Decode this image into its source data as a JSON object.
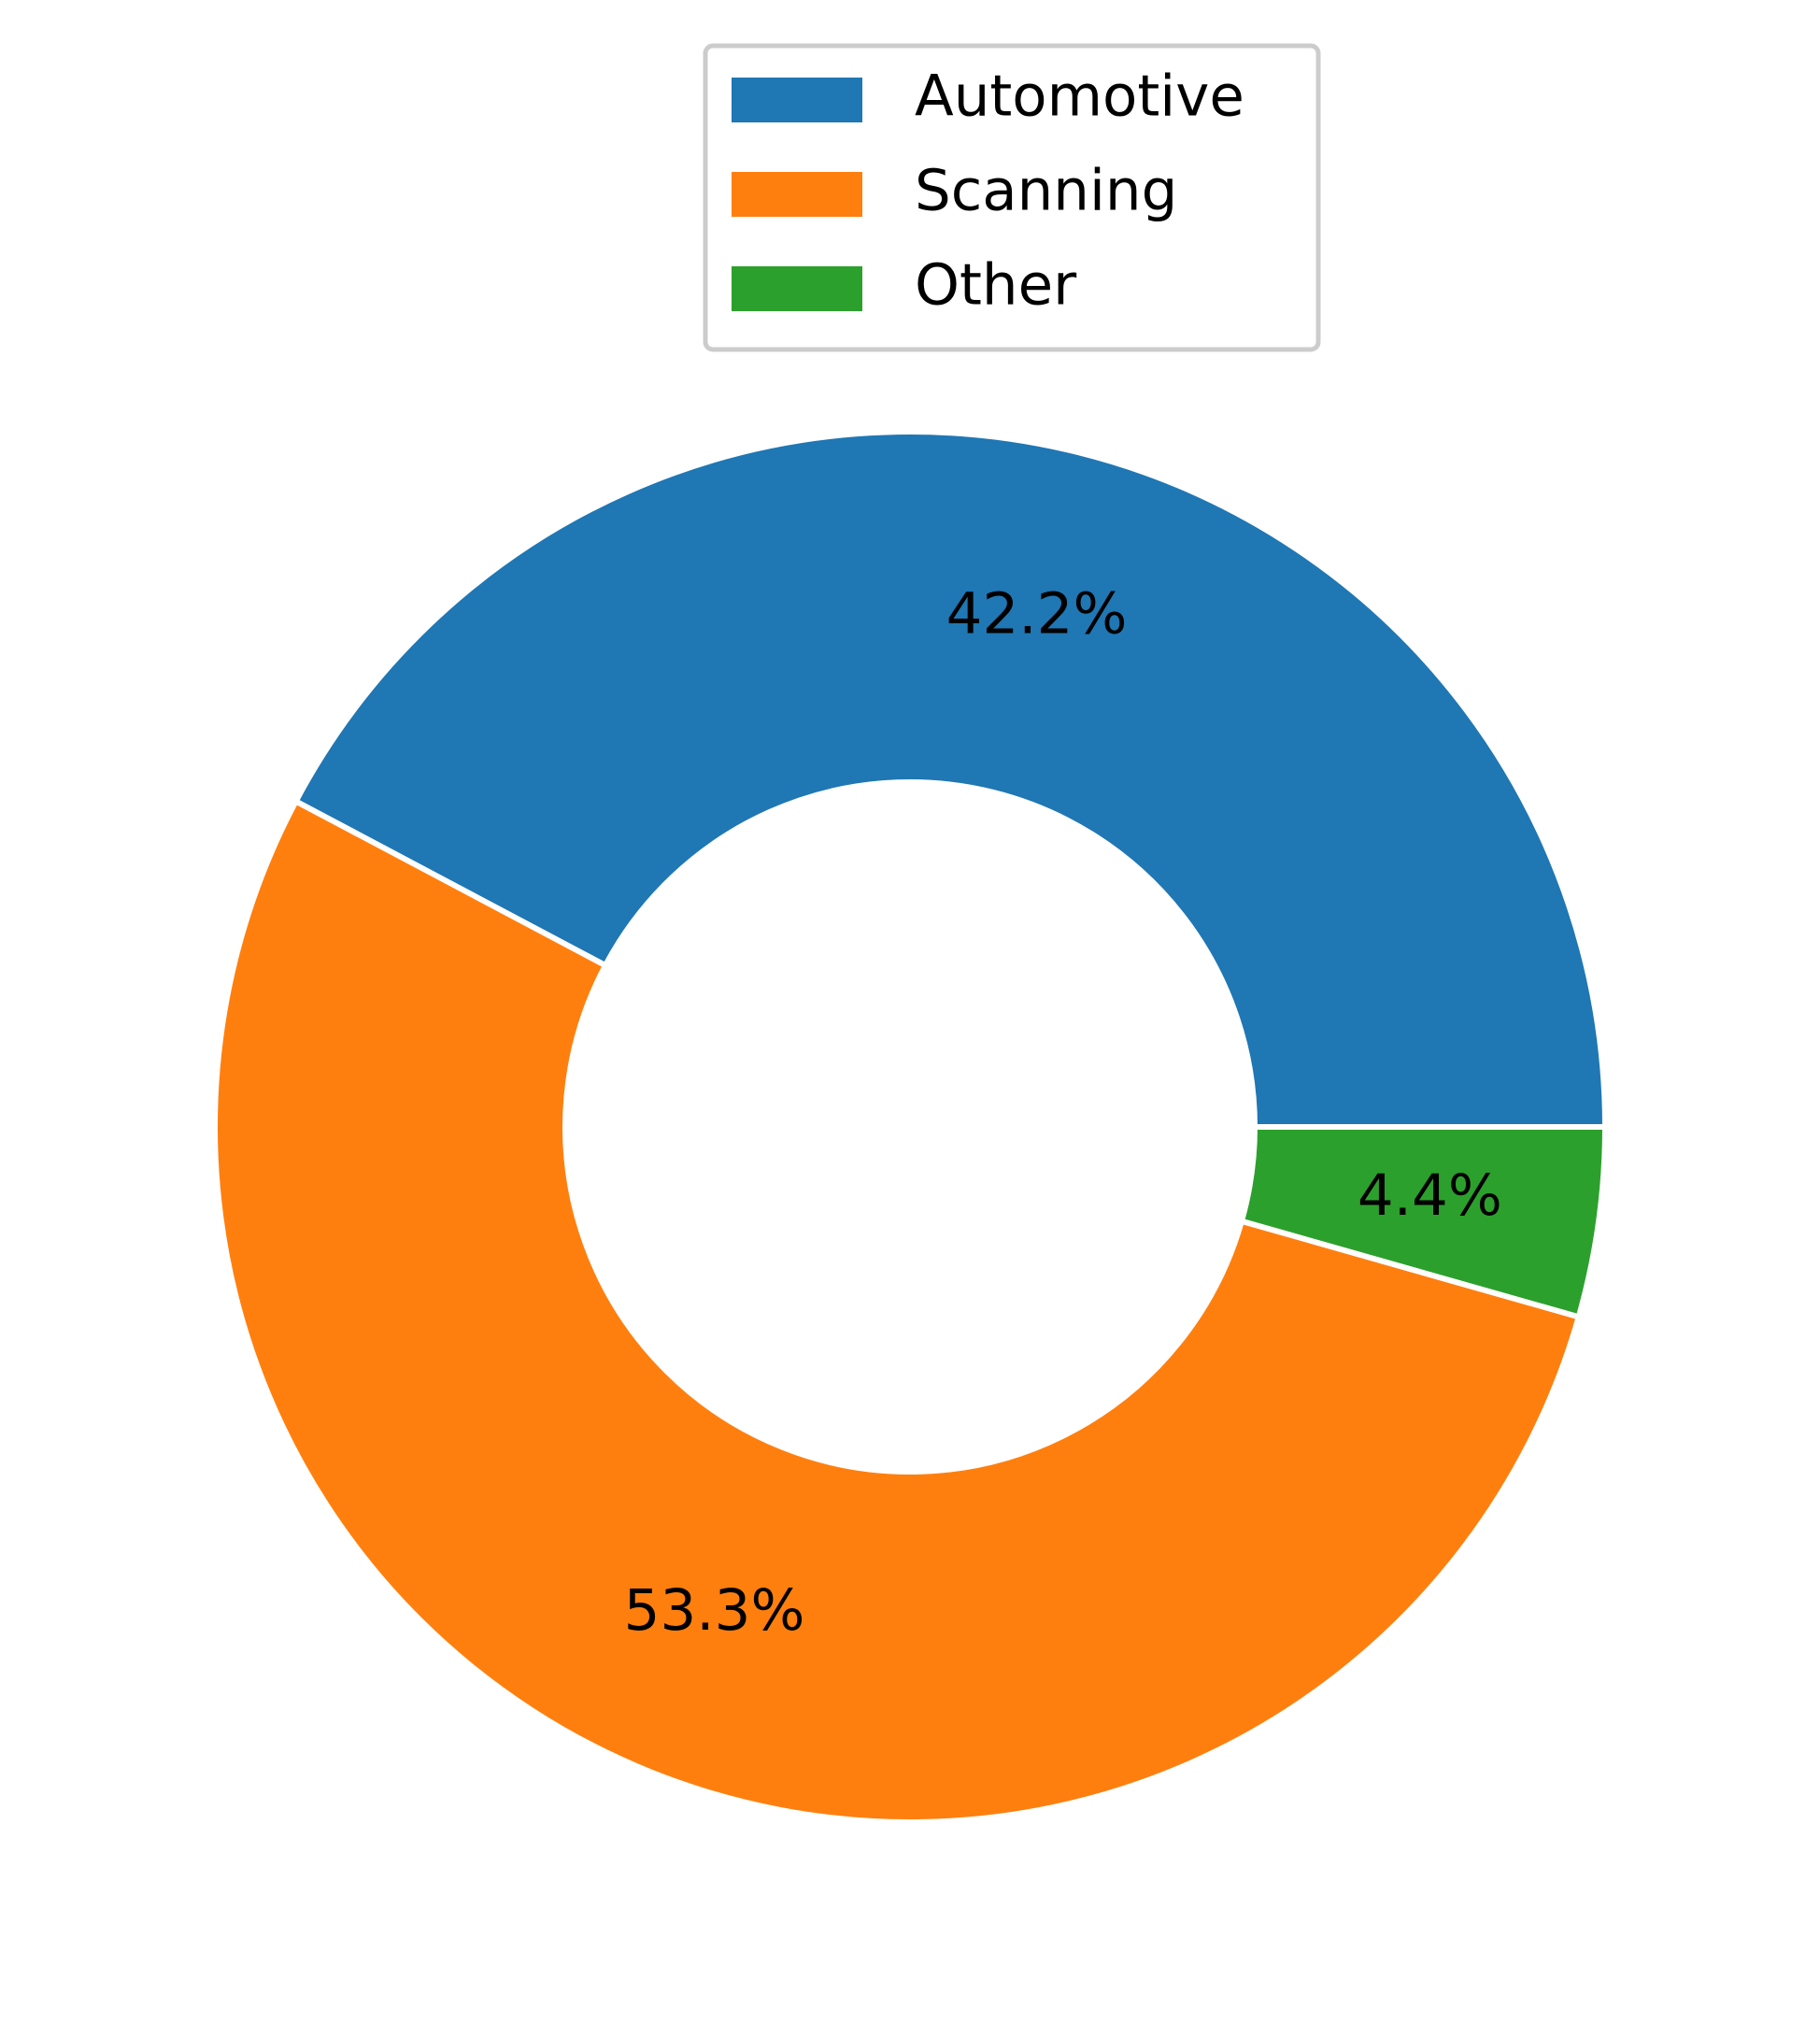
{
  "chart_data": {
    "type": "donut",
    "categories": [
      "Automotive",
      "Scanning",
      "Other"
    ],
    "values": [
      42.2,
      53.3,
      4.4
    ],
    "value_labels": [
      "42.2%",
      "53.3%",
      "4.4%"
    ],
    "colors": [
      "#1f77b4",
      "#ff7f0e",
      "#2ca02c"
    ],
    "legend": "upper center"
  }
}
